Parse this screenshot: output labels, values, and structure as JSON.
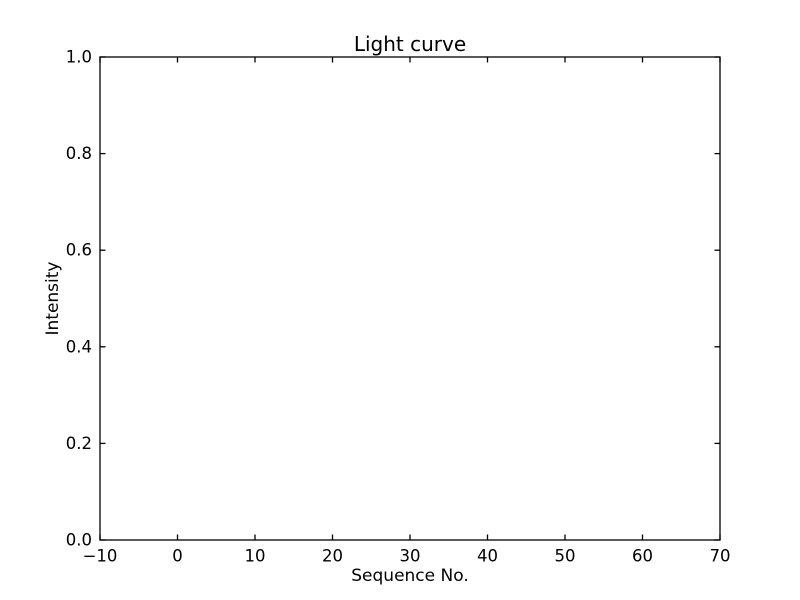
{
  "figure": {
    "background": "#ffffff"
  },
  "chart_data": {
    "type": "line",
    "title": "Light curve",
    "xlabel": "Sequence No.",
    "ylabel": "Intensity",
    "xlim": [
      -10,
      70
    ],
    "ylim": [
      0.0,
      1.0
    ],
    "xticks": [
      -10,
      0,
      10,
      20,
      30,
      40,
      50,
      60,
      70
    ],
    "xtick_labels": [
      "−10",
      "0",
      "10",
      "20",
      "30",
      "40",
      "50",
      "60",
      "70"
    ],
    "yticks": [
      0.0,
      0.2,
      0.4,
      0.6,
      0.8,
      1.0
    ],
    "ytick_labels": [
      "0.0",
      "0.2",
      "0.4",
      "0.6",
      "0.8",
      "1.0"
    ],
    "grid": false,
    "legend": false,
    "series": [],
    "axis_color": "#000000",
    "text_color": "#000000"
  }
}
